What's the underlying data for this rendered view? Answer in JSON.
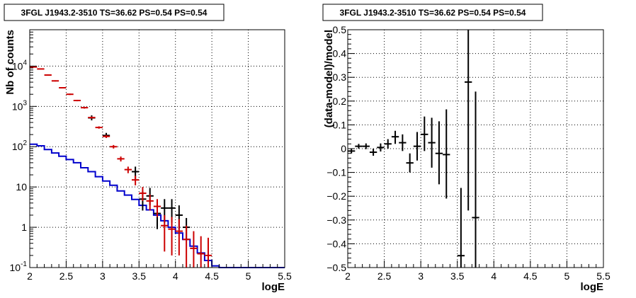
{
  "left_panel": {
    "title": "3FGL J1943.2-3510 TS=36.62 PS=0.54 PS=0.54",
    "xlabel": "logE",
    "ylabel": "Nb of counts"
  },
  "right_panel": {
    "title": "3FGL J1943.2-3510 TS=36.62 PS=0.54 PS=0.54",
    "xlabel": "logE",
    "ylabel": "(data-model)/model"
  },
  "chart_data": [
    {
      "type": "scatter",
      "title": "3FGL J1943.2-3510 TS=36.62 PS=0.54 PS=0.54",
      "xlabel": "logE",
      "ylabel": "Nb of counts",
      "xlim": [
        2,
        5.5
      ],
      "ylim": [
        0.1,
        80000
      ],
      "yscale": "log",
      "grid": true,
      "x_ticks": [
        "2",
        "2.5",
        "3",
        "3.5",
        "4",
        "4.5",
        "5",
        "5.5"
      ],
      "y_ticks": [
        {
          "value": 0.1,
          "label": "10^-1"
        },
        {
          "value": 1,
          "label": "1"
        },
        {
          "value": 10,
          "label": "10"
        },
        {
          "value": 100,
          "label": "10^2"
        },
        {
          "value": 1000,
          "label": "10^3"
        },
        {
          "value": 10000,
          "label": "10^4"
        }
      ],
      "series": [
        {
          "color": "#0000cc",
          "style": "step",
          "bin_edges": [
            2.0,
            2.1,
            2.2,
            2.3,
            2.4,
            2.5,
            2.6,
            2.7,
            2.8,
            2.9,
            3.0,
            3.1,
            3.2,
            3.3,
            3.4,
            3.5,
            3.6,
            3.7,
            3.8,
            3.9,
            4.0,
            4.1,
            4.2,
            4.3,
            4.4,
            4.5,
            4.6,
            4.7,
            4.8,
            4.9,
            5.0,
            5.1,
            5.2,
            5.3,
            5.4,
            5.5
          ],
          "values": [
            115,
            105,
            85,
            70,
            58,
            48,
            40,
            30,
            24,
            18,
            14,
            11,
            8,
            6.3,
            4.9,
            3.5,
            2.7,
            2.0,
            1.45,
            1.0,
            0.72,
            0.5,
            0.34,
            0.23,
            0.15,
            0.11,
            0.1,
            0.1,
            0.1,
            0.1,
            0.1,
            0.1,
            0.1,
            0.1,
            0.1
          ]
        },
        {
          "color": "#000000",
          "style": "errorbar",
          "x": [
            2.85,
            3.05,
            3.45,
            3.55,
            3.65,
            3.75,
            3.85,
            3.95,
            4.05,
            4.15
          ],
          "y": [
            520,
            190,
            24,
            5,
            6,
            2.2,
            3,
            3,
            2,
            1
          ],
          "y_low": [
            450,
            165,
            15,
            2.6,
            3.5,
            0.9,
            1.3,
            1.3,
            0.9,
            0.5
          ],
          "y_high": [
            600,
            220,
            32,
            8,
            9.5,
            4,
            5,
            5,
            3.5,
            1.7
          ]
        },
        {
          "color": "#cc0000",
          "style": "errorbar",
          "x": [
            2.05,
            2.15,
            2.25,
            2.35,
            2.45,
            2.55,
            2.65,
            2.75,
            2.85,
            2.95,
            3.05,
            3.15,
            3.25,
            3.35,
            3.45,
            3.55,
            3.65,
            3.75,
            3.85,
            3.95,
            4.05,
            4.15,
            4.25,
            4.35,
            4.45
          ],
          "y": [
            9500,
            8500,
            6000,
            4300,
            2900,
            2000,
            1400,
            930,
            530,
            300,
            180,
            100,
            50,
            27,
            15,
            7,
            4.5,
            3.3,
            1.1,
            0.9,
            0.8,
            0.5,
            0.3,
            0.22,
            0.2
          ],
          "y_low": [
            9300,
            8300,
            5800,
            4150,
            2800,
            1920,
            1340,
            880,
            500,
            280,
            165,
            90,
            43,
            22,
            11,
            4.5,
            2.6,
            1.8,
            0.25,
            0.2,
            0.2,
            0.1,
            0.1,
            0.1,
            0.1
          ],
          "y_high": [
            9700,
            8700,
            6200,
            4450,
            3000,
            2080,
            1460,
            980,
            560,
            320,
            195,
            110,
            57,
            32,
            19,
            10,
            6.5,
            5,
            2,
            1.8,
            1.6,
            1.1,
            0.8,
            0.6,
            0.55
          ]
        }
      ]
    },
    {
      "type": "scatter",
      "title": "3FGL J1943.2-3510 TS=36.62 PS=0.54 PS=0.54",
      "xlabel": "logE",
      "ylabel": "(data-model)/model",
      "xlim": [
        2,
        5.5
      ],
      "ylim": [
        -0.5,
        0.5
      ],
      "grid": true,
      "x_ticks": [
        "2",
        "2.5",
        "3",
        "3.5",
        "4",
        "4.5",
        "5",
        "5.5"
      ],
      "y_ticks": [
        "-0.5",
        "-0.4",
        "-0.3",
        "-0.2",
        "-0.1",
        "0",
        "0.1",
        "0.2",
        "0.3",
        "0.4",
        "0.5"
      ],
      "series": [
        {
          "color": "#000000",
          "style": "errorbar",
          "x": [
            2.05,
            2.15,
            2.25,
            2.35,
            2.45,
            2.55,
            2.65,
            2.75,
            2.85,
            2.95,
            3.05,
            3.15,
            3.25,
            3.35,
            3.55,
            3.65,
            3.75
          ],
          "y": [
            -0.01,
            0.01,
            0.01,
            -0.015,
            0.005,
            0.02,
            0.05,
            0.025,
            -0.06,
            0.01,
            0.06,
            0.025,
            -0.02,
            -0.025,
            -0.45,
            0.28,
            -0.29
          ],
          "y_low": [
            -0.02,
            0.0,
            -0.002,
            -0.03,
            -0.012,
            0.0,
            0.02,
            -0.01,
            -0.1,
            -0.05,
            -0.01,
            -0.08,
            -0.15,
            -0.21,
            -0.5,
            -0.26,
            -0.5
          ],
          "y_high": [
            0.0,
            0.02,
            0.022,
            0.0,
            0.022,
            0.04,
            0.075,
            0.06,
            -0.02,
            0.07,
            0.135,
            0.13,
            0.115,
            0.165,
            -0.165,
            0.5,
            0.24
          ]
        }
      ]
    }
  ]
}
